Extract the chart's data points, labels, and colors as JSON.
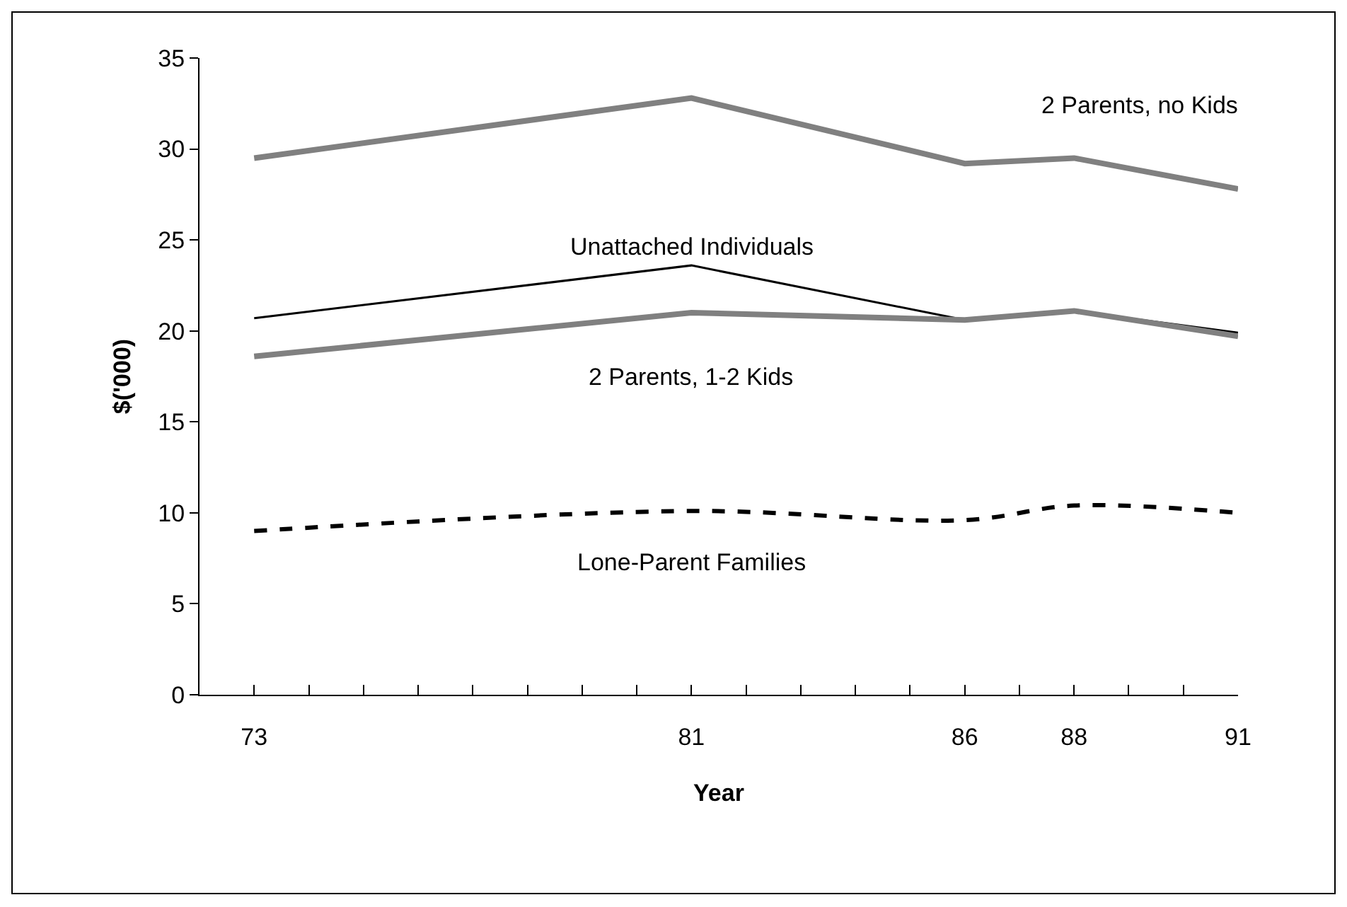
{
  "chart_data": {
    "type": "line",
    "xlabel": "Year",
    "ylabel": "$('000)",
    "x": [
      73,
      81,
      86,
      88,
      91
    ],
    "series": [
      {
        "name": "2 Parents, no Kids",
        "color": "#808080",
        "values": [
          29.5,
          32.8,
          29.2,
          29.5,
          27.8
        ]
      },
      {
        "name": "Unattached Individuals",
        "color": "#000000",
        "values": [
          20.7,
          23.6,
          20.6,
          21.1,
          19.9
        ]
      },
      {
        "name": "2 Parents, 1-2 Kids",
        "color": "#808080",
        "values": [
          18.6,
          21.0,
          20.6,
          21.1,
          19.7
        ]
      },
      {
        "name": "Lone-Parent Families",
        "color": "#000000",
        "values": [
          9.0,
          10.1,
          9.6,
          10.4,
          10.0
        ],
        "line_style": "dashed"
      }
    ],
    "xlim": [
      72,
      91
    ],
    "xticks": [
      {
        "value": 72,
        "label": null
      },
      73,
      {
        "value": 74,
        "label": null
      },
      {
        "value": 75,
        "label": null
      },
      {
        "value": 76,
        "label": null
      },
      {
        "value": 77,
        "label": null
      },
      {
        "value": 78,
        "label": null
      },
      {
        "value": 79,
        "label": null
      },
      {
        "value": 80,
        "label": null
      },
      81,
      {
        "value": 82,
        "label": null
      },
      {
        "value": 83,
        "label": null
      },
      {
        "value": 84,
        "label": null
      },
      {
        "value": 85,
        "label": null
      },
      86,
      {
        "value": 87,
        "label": null
      },
      88,
      {
        "value": 89,
        "label": null
      },
      {
        "value": 90,
        "label": null
      },
      91
    ],
    "ylim": [
      0,
      35
    ],
    "yticks": [
      0,
      5,
      10,
      15,
      20,
      25,
      30,
      35
    ],
    "grid": false,
    "legend": false,
    "marker": "none",
    "line_style": "solid"
  }
}
